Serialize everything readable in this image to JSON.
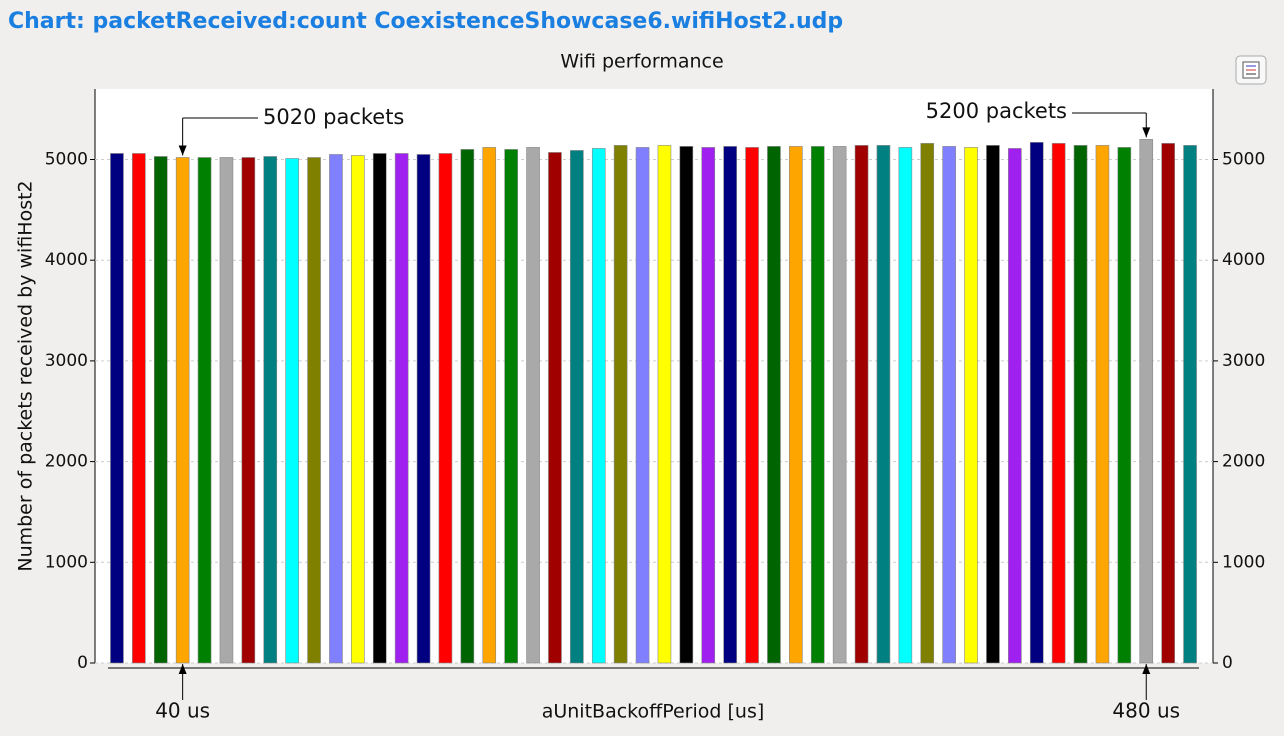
{
  "window_title": "Chart: packetReceived:count CoexistenceShowcase6.wifiHost2.udp",
  "chart_data": {
    "type": "bar",
    "title": "Wifi performance",
    "x_label": "aUnitBackoffPeriod [us]",
    "y_label": "Number of packets received by wifiHost2",
    "values": [
      5060,
      5060,
      5030,
      5020,
      5020,
      5020,
      5020,
      5030,
      5010,
      5020,
      5050,
      5040,
      5060,
      5060,
      5050,
      5060,
      5100,
      5120,
      5100,
      5120,
      5070,
      5090,
      5110,
      5140,
      5120,
      5140,
      5130,
      5120,
      5130,
      5120,
      5130,
      5130,
      5130,
      5130,
      5140,
      5140,
      5120,
      5160,
      5130,
      5120,
      5140,
      5110,
      5170,
      5160,
      5140,
      5140,
      5120,
      5200,
      5160,
      5140
    ],
    "colors": [
      "#000080",
      "#ff0000",
      "#006400",
      "#ffa500",
      "#008000",
      "#a9a9a9",
      "#a00000",
      "#008080",
      "#00ffff",
      "#808000",
      "#8080ff",
      "#ffff00",
      "#000000",
      "#a020f0",
      "#000080",
      "#ff0000",
      "#006400",
      "#ffa500",
      "#008000",
      "#a9a9a9",
      "#a00000",
      "#008080",
      "#00ffff",
      "#808000",
      "#8080ff",
      "#ffff00",
      "#000000",
      "#a020f0",
      "#000080",
      "#ff0000",
      "#006400",
      "#ffa500",
      "#008000",
      "#a9a9a9",
      "#a00000",
      "#008080",
      "#00ffff",
      "#808000",
      "#8080ff",
      "#ffff00",
      "#000000",
      "#a020f0",
      "#000080",
      "#ff0000",
      "#006400",
      "#ffa500",
      "#008000",
      "#a9a9a9",
      "#a00000",
      "#008080"
    ],
    "ylim": [
      0,
      5700
    ],
    "yticks": [
      0,
      1000,
      2000,
      3000,
      4000,
      5000
    ],
    "grid": true,
    "annotations": [
      "5020 packets",
      "5200 packets",
      "40 us",
      "480 us"
    ]
  }
}
